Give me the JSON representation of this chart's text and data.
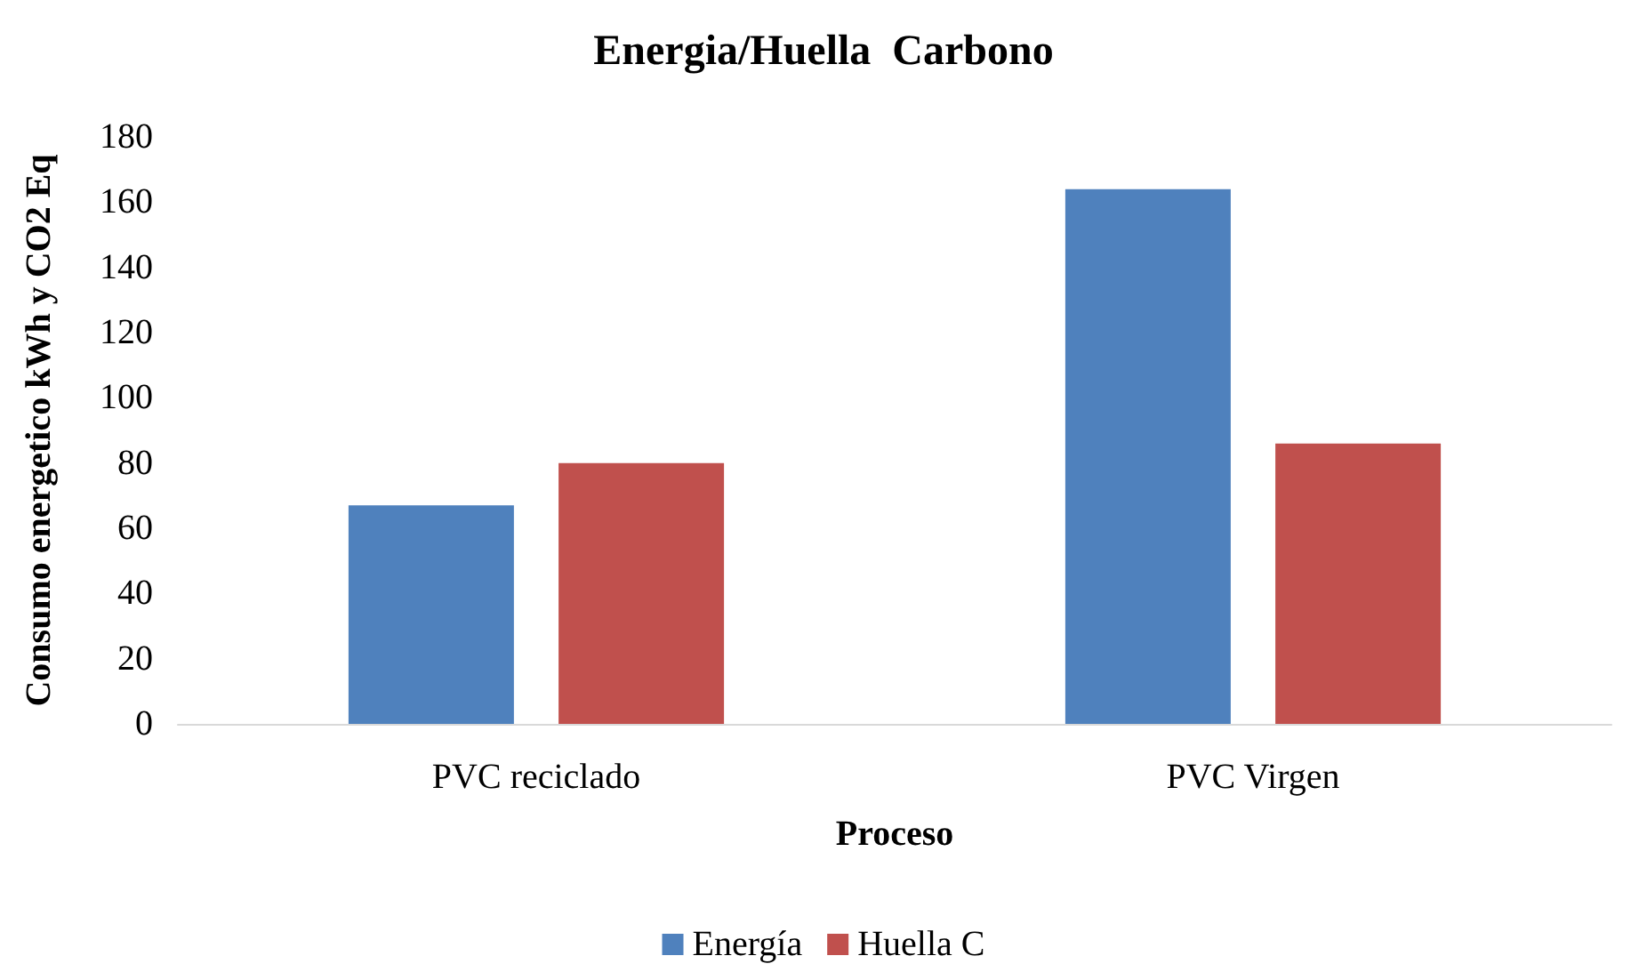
{
  "chart_data": {
    "type": "bar",
    "title": "Energia/Huella  Carbono",
    "xlabel": "Proceso",
    "ylabel": "Consumo energetico kWh y CO2 Eq",
    "categories": [
      "PVC reciclado",
      "PVC Virgen"
    ],
    "series": [
      {
        "name": "Energía",
        "color": "#4f81bd",
        "values": [
          67,
          164
        ]
      },
      {
        "name": "Huella C",
        "color": "#c0504d",
        "values": [
          80,
          86
        ]
      }
    ],
    "ylim": [
      0,
      180
    ],
    "yticks": [
      0,
      20,
      40,
      60,
      80,
      100,
      120,
      140,
      160,
      180
    ],
    "grid": false,
    "legend": "bottom"
  }
}
